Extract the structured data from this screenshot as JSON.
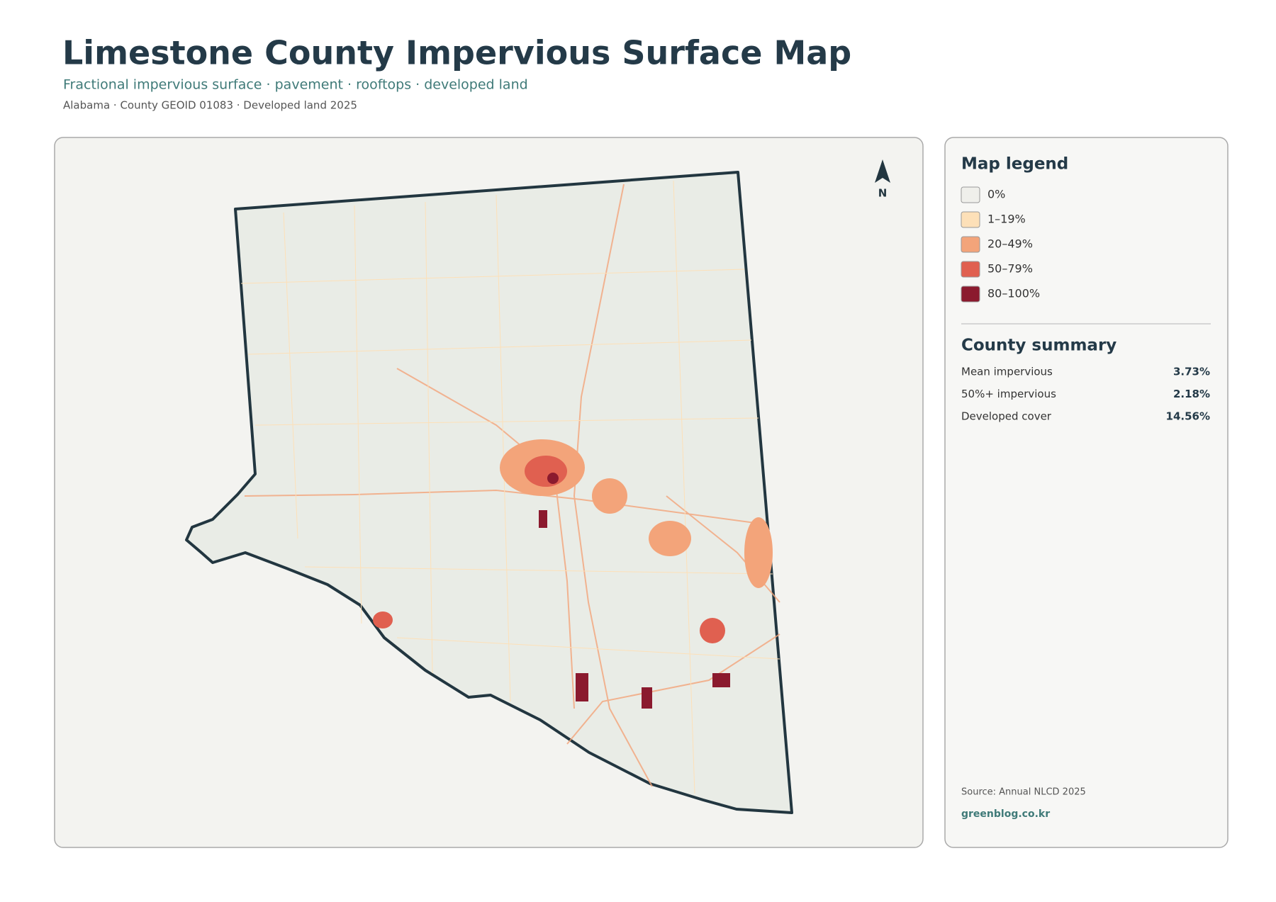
{
  "header": {
    "title": "Limestone County Impervious Surface Map",
    "subtitle": "Fractional impervious surface · pavement · rooftops · developed land",
    "meta": "Alabama · County GEOID 01083 · Developed land 2025"
  },
  "map": {
    "north": "N"
  },
  "legend": {
    "title": "Map legend",
    "items": [
      {
        "label": "0%",
        "color": "#efefeb"
      },
      {
        "label": "1–19%",
        "color": "#fde0b8"
      },
      {
        "label": "20–49%",
        "color": "#f3a47a"
      },
      {
        "label": "50–79%",
        "color": "#e06050"
      },
      {
        "label": "80–100%",
        "color": "#8b1a2e"
      }
    ]
  },
  "summary": {
    "title": "County summary",
    "rows": [
      {
        "label": "Mean impervious",
        "value": "3.73%"
      },
      {
        "label": "50%+ impervious",
        "value": "2.18%"
      },
      {
        "label": "Developed cover",
        "value": "14.56%"
      }
    ]
  },
  "footer": {
    "source": "Source: Annual NLCD 2025",
    "site": "greenblog.co.kr"
  }
}
